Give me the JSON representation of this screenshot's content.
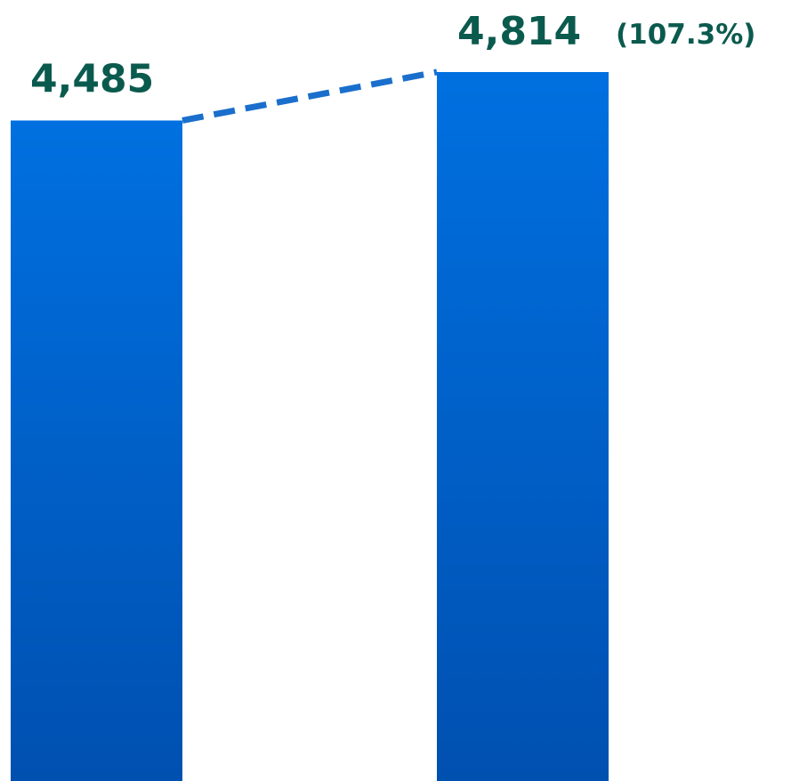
{
  "chart_data": {
    "type": "bar",
    "categories": [
      "",
      ""
    ],
    "values": [
      4485,
      4814
    ],
    "value_labels": [
      "4,485",
      "4,814"
    ],
    "growth_label": "(107.3%)",
    "title": "",
    "xlabel": "",
    "ylabel": "",
    "ylim": [
      0,
      4814
    ],
    "grid": false,
    "legend": "none",
    "trend_line": "dashed",
    "colors": {
      "bar_top": "#0070e0",
      "bar_bottom": "#0050b0",
      "label": "#0b5a4e",
      "trend": "#1a6fcc"
    }
  }
}
